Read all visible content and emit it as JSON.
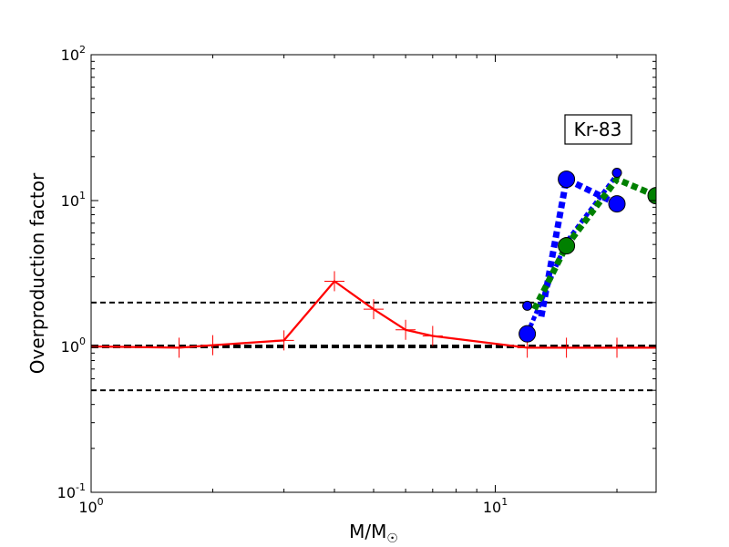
{
  "chart_data": {
    "type": "line",
    "xlabel": "M/M☉",
    "ylabel": "Overproduction factor",
    "xscale": "log",
    "yscale": "log",
    "xlim": [
      1,
      25
    ],
    "ylim": [
      0.1,
      100
    ],
    "x_ticks": [
      {
        "mantissa": "10",
        "exponent": "0",
        "value": 1
      },
      {
        "mantissa": "10",
        "exponent": "1",
        "value": 10
      }
    ],
    "y_ticks": [
      {
        "mantissa": "10",
        "exponent": "-1",
        "value": 0.1
      },
      {
        "mantissa": "10",
        "exponent": "0",
        "value": 1
      },
      {
        "mantissa": "10",
        "exponent": "1",
        "value": 10
      },
      {
        "mantissa": "10",
        "exponent": "2",
        "value": 100
      }
    ],
    "annotation": "Kr-83",
    "reference_lines": [
      {
        "y": 2.0,
        "style": "dashed",
        "width": 2
      },
      {
        "y": 1.0,
        "style": "dashed",
        "width": 4
      },
      {
        "y": 0.5,
        "style": "dashed",
        "width": 2
      }
    ],
    "series": [
      {
        "color": "#ff0000",
        "style": "solid",
        "marker": "plus",
        "points": [
          [
            1.0,
            1.0
          ],
          [
            1.65,
            0.98
          ],
          [
            2.0,
            1.02
          ],
          [
            3.0,
            1.1
          ],
          [
            4.0,
            2.8
          ],
          [
            5.0,
            1.8
          ],
          [
            6.0,
            1.3
          ],
          [
            7.0,
            1.18
          ],
          [
            12.0,
            0.98
          ],
          [
            15.0,
            0.98
          ],
          [
            20.0,
            0.98
          ],
          [
            25.0,
            0.98
          ]
        ]
      },
      {
        "color": "#0000ff",
        "style": "dotted",
        "marker": "circle",
        "linewidth": 7,
        "points": [
          [
            13.0,
            1.6
          ],
          [
            15.0,
            14.0
          ],
          [
            20.0,
            9.5
          ]
        ]
      },
      {
        "color": "#0000ff",
        "style": "dotted",
        "marker": "circle",
        "linewidth": 5,
        "points": [
          [
            12.0,
            1.22
          ],
          [
            15.0,
            5.2
          ],
          [
            20.0,
            15.0
          ]
        ]
      },
      {
        "color": "#008000",
        "style": "dotted",
        "marker": "circle",
        "linewidth": 7,
        "points": [
          [
            12.5,
            1.8
          ],
          [
            15.0,
            4.9
          ],
          [
            20.0,
            14.0
          ],
          [
            25.0,
            10.8
          ]
        ]
      }
    ],
    "markers": [
      {
        "series": 1,
        "x": 12.0,
        "y": 1.22,
        "color": "#0000ff",
        "size": "large"
      },
      {
        "series": 1,
        "x": 12.0,
        "y": 1.9,
        "color": "#0000ff",
        "size": "small"
      },
      {
        "series": 1,
        "x": 15.0,
        "y": 14.0,
        "color": "#0000ff",
        "size": "large"
      },
      {
        "series": 1,
        "x": 15.0,
        "y": 5.2,
        "color": "#0000ff",
        "size": "small"
      },
      {
        "series": 1,
        "x": 20.0,
        "y": 9.5,
        "color": "#0000ff",
        "size": "large"
      },
      {
        "series": 1,
        "x": 20.0,
        "y": 15.5,
        "color": "#0000ff",
        "size": "small"
      },
      {
        "series": 3,
        "x": 15.0,
        "y": 4.9,
        "color": "#008000",
        "size": "large"
      },
      {
        "series": 3,
        "x": 25.0,
        "y": 10.8,
        "color": "#008000",
        "size": "large"
      }
    ],
    "grid": false
  }
}
